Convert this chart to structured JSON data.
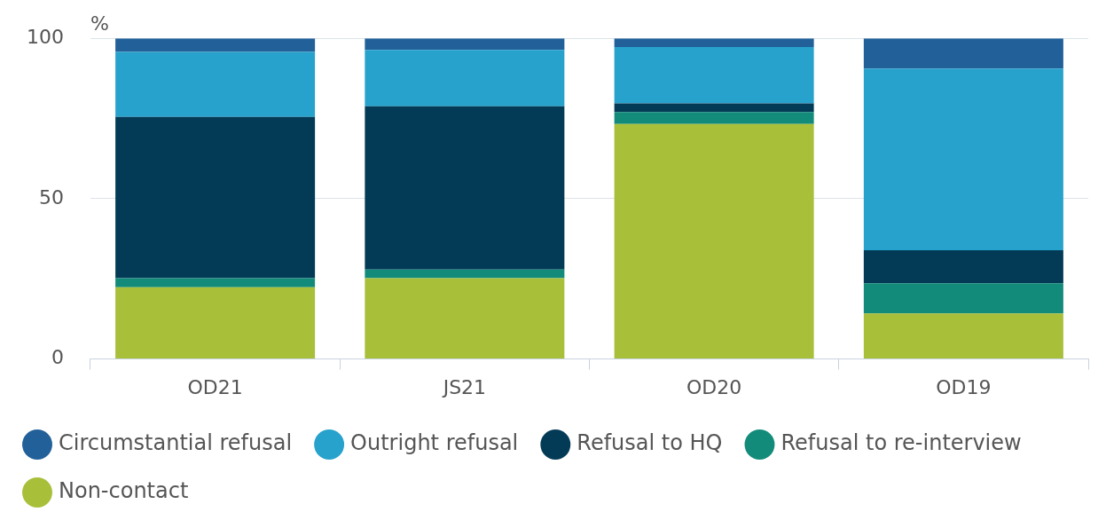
{
  "chart_data": {
    "type": "bar",
    "stacked": true,
    "ylabel": "%",
    "categories": [
      "OD21",
      "JS21",
      "OD20",
      "OD19"
    ],
    "series": [
      {
        "name": "Non-contact",
        "color": "#a8bf3a",
        "values": [
          22.4,
          25.2,
          73.3,
          14.2
        ]
      },
      {
        "name": "Refusal to re-interview",
        "color": "#138b7a",
        "values": [
          2.8,
          2.7,
          3.7,
          9.4
        ]
      },
      {
        "name": "Refusal to HQ",
        "color": "#033b57",
        "values": [
          50.3,
          50.9,
          2.7,
          10.3
        ]
      },
      {
        "name": "Outright refusal",
        "color": "#27a2cd",
        "values": [
          20.3,
          17.6,
          17.6,
          56.7
        ]
      },
      {
        "name": "Circumstantial refusal",
        "color": "#22609a",
        "values": [
          4.2,
          3.6,
          2.7,
          9.4
        ]
      }
    ],
    "ylim": [
      0,
      100
    ],
    "yticks": [
      0,
      50,
      100
    ],
    "grid": "y",
    "legend": "bottom"
  }
}
